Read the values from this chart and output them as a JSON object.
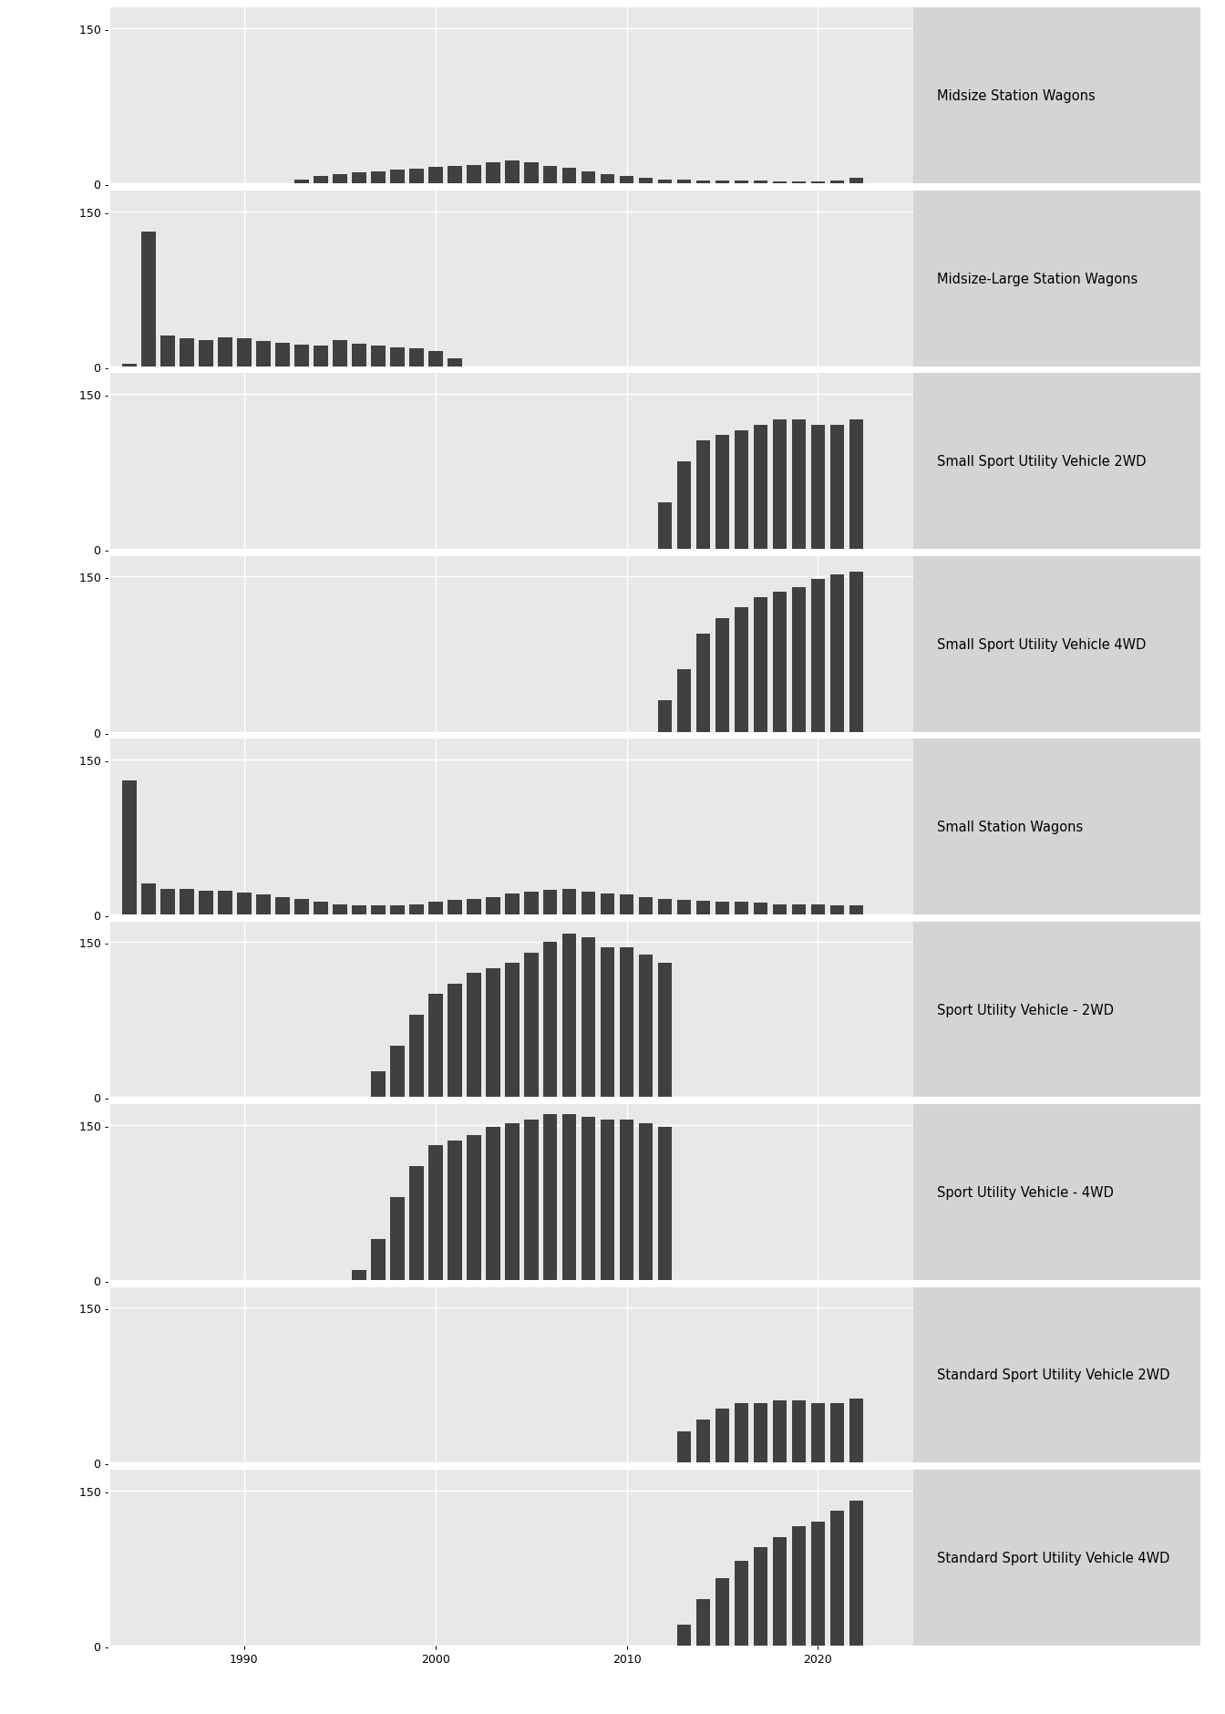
{
  "panels": [
    {
      "label": "Midsize Station Wagons",
      "years": [
        1993,
        1994,
        1995,
        1996,
        1997,
        1998,
        1999,
        2000,
        2001,
        2002,
        2003,
        2004,
        2005,
        2006,
        2007,
        2008,
        2009,
        2010,
        2011,
        2012,
        2013,
        2014,
        2015,
        2016,
        2017,
        2018,
        2019,
        2020,
        2021,
        2022
      ],
      "values": [
        4,
        7,
        9,
        11,
        12,
        13,
        14,
        16,
        17,
        18,
        20,
        22,
        20,
        17,
        15,
        12,
        9,
        7,
        5,
        4,
        4,
        3,
        3,
        3,
        3,
        2,
        2,
        2,
        3,
        5
      ]
    },
    {
      "label": "Midsize-Large Station Wagons",
      "years": [
        1984,
        1985,
        1986,
        1987,
        1988,
        1989,
        1990,
        1991,
        1992,
        1993,
        1994,
        1995,
        1996,
        1997,
        1998,
        1999,
        2000,
        2001
      ],
      "values": [
        2,
        130,
        30,
        27,
        25,
        28,
        27,
        24,
        23,
        21,
        20,
        25,
        22,
        20,
        18,
        17,
        15,
        8
      ]
    },
    {
      "label": "Small Sport Utility Vehicle 2WD",
      "years": [
        2012,
        2013,
        2014,
        2015,
        2016,
        2017,
        2018,
        2019,
        2020,
        2021,
        2022
      ],
      "values": [
        45,
        85,
        105,
        110,
        115,
        120,
        125,
        125,
        120,
        120,
        125
      ]
    },
    {
      "label": "Small Sport Utility Vehicle 4WD",
      "years": [
        2012,
        2013,
        2014,
        2015,
        2016,
        2017,
        2018,
        2019,
        2020,
        2021,
        2022
      ],
      "values": [
        30,
        60,
        95,
        110,
        120,
        130,
        135,
        140,
        148,
        152,
        155
      ]
    },
    {
      "label": "Small Station Wagons",
      "years": [
        1984,
        1985,
        1986,
        1987,
        1988,
        1989,
        1990,
        1991,
        1992,
        1993,
        1994,
        1995,
        1996,
        1997,
        1998,
        1999,
        2000,
        2001,
        2002,
        2003,
        2004,
        2005,
        2006,
        2007,
        2008,
        2009,
        2010,
        2011,
        2012,
        2013,
        2014,
        2015,
        2016,
        2017,
        2018,
        2019,
        2020,
        2021,
        2022
      ],
      "values": [
        130,
        30,
        25,
        25,
        23,
        23,
        21,
        19,
        17,
        15,
        12,
        10,
        9,
        9,
        9,
        10,
        12,
        14,
        15,
        17,
        20,
        22,
        24,
        25,
        22,
        20,
        19,
        17,
        15,
        14,
        13,
        12,
        12,
        11,
        10,
        10,
        10,
        9,
        9
      ]
    },
    {
      "label": "Sport Utility Vehicle - 2WD",
      "years": [
        1997,
        1998,
        1999,
        2000,
        2001,
        2002,
        2003,
        2004,
        2005,
        2006,
        2007,
        2008,
        2009,
        2010,
        2011,
        2012
      ],
      "values": [
        25,
        50,
        80,
        100,
        110,
        120,
        125,
        130,
        140,
        150,
        158,
        155,
        145,
        145,
        138,
        130
      ]
    },
    {
      "label": "Sport Utility Vehicle - 4WD",
      "years": [
        1996,
        1997,
        1998,
        1999,
        2000,
        2001,
        2002,
        2003,
        2004,
        2005,
        2006,
        2007,
        2008,
        2009,
        2010,
        2011,
        2012
      ],
      "values": [
        10,
        40,
        80,
        110,
        130,
        135,
        140,
        148,
        152,
        155,
        160,
        160,
        158,
        155,
        155,
        152,
        148
      ]
    },
    {
      "label": "Standard Sport Utility Vehicle 2WD",
      "years": [
        2013,
        2014,
        2015,
        2016,
        2017,
        2018,
        2019,
        2020,
        2021,
        2022
      ],
      "values": [
        30,
        42,
        52,
        58,
        58,
        60,
        60,
        58,
        58,
        62
      ]
    },
    {
      "label": "Standard Sport Utility Vehicle 4WD",
      "years": [
        2013,
        2014,
        2015,
        2016,
        2017,
        2018,
        2019,
        2020,
        2021,
        2022
      ],
      "values": [
        20,
        45,
        65,
        82,
        95,
        105,
        115,
        120,
        130,
        140
      ]
    }
  ],
  "bar_color": "#404040",
  "plot_bg": "#e8e8e8",
  "label_bg": "#d4d4d4",
  "fig_bg": "#ffffff",
  "grid_color": "#ffffff",
  "ylim": [
    0,
    170
  ],
  "x_min": 1983,
  "x_max": 2025,
  "xticks": [
    1990,
    2000,
    2010,
    2020
  ],
  "ytick_vals": [
    0,
    150
  ],
  "figsize": [
    13.44,
    18.81
  ],
  "dpi": 100
}
